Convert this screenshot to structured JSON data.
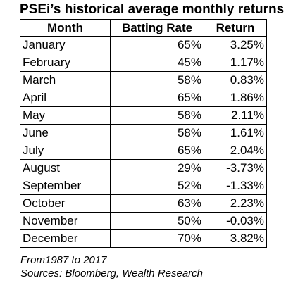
{
  "title": "PSEi’s historical average monthly returns",
  "table": {
    "headers": [
      "Month",
      "Batting Rate",
      "Return"
    ],
    "rows": [
      [
        "January",
        "65%",
        "3.25%"
      ],
      [
        "February",
        "45%",
        "1.17%"
      ],
      [
        "March",
        "58%",
        "0.83%"
      ],
      [
        "April",
        "65%",
        "1.86%"
      ],
      [
        "May",
        "58%",
        "2.11%"
      ],
      [
        "June",
        "58%",
        "1.61%"
      ],
      [
        "July",
        "65%",
        "2.04%"
      ],
      [
        "August",
        "29%",
        "-3.73%"
      ],
      [
        "September",
        "52%",
        "-1.33%"
      ],
      [
        "October",
        "63%",
        "2.23%"
      ],
      [
        "November",
        "50%",
        "-0.03%"
      ],
      [
        "December",
        "70%",
        "3.82%"
      ]
    ]
  },
  "notes": {
    "period": "From1987 to 2017",
    "sources": "Sources: Bloomberg, Wealth Research"
  }
}
